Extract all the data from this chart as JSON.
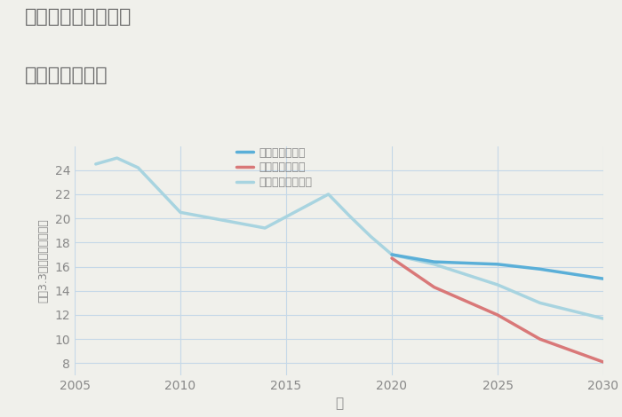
{
  "title_line1": "三重県伊勢市河崎の",
  "title_line2": "土地の価格推移",
  "xlabel": "年",
  "ylabel": "坪（3.3㎡）単価（万円）",
  "background_color": "#f0f0eb",
  "plot_background": "#f0f0eb",
  "good_scenario": {
    "label": "グッドシナリオ",
    "color": "#5aafd8",
    "years": [
      2020,
      2022,
      2025,
      2027,
      2030
    ],
    "values": [
      17.0,
      16.4,
      16.2,
      15.8,
      15.0
    ]
  },
  "bad_scenario": {
    "label": "バッドシナリオ",
    "color": "#d97878",
    "years": [
      2020,
      2022,
      2025,
      2027,
      2030
    ],
    "values": [
      16.7,
      14.3,
      12.0,
      10.0,
      8.1
    ]
  },
  "normal_scenario": {
    "label": "ノーマルシナリオ",
    "color": "#a8d4e0",
    "years": [
      2006,
      2007,
      2008,
      2010,
      2014,
      2017,
      2018,
      2019,
      2020,
      2022,
      2025,
      2027,
      2030
    ],
    "values": [
      24.5,
      25.0,
      24.2,
      20.5,
      19.2,
      22.0,
      20.2,
      18.5,
      17.0,
      16.2,
      14.5,
      13.0,
      11.7
    ]
  },
  "xlim": [
    2005,
    2030
  ],
  "ylim": [
    7,
    26
  ],
  "yticks": [
    8,
    10,
    12,
    14,
    16,
    18,
    20,
    22,
    24
  ],
  "xticks": [
    2005,
    2010,
    2015,
    2020,
    2025,
    2030
  ],
  "title_color": "#666666",
  "tick_color": "#888888",
  "grid_color": "#c5d8e8"
}
